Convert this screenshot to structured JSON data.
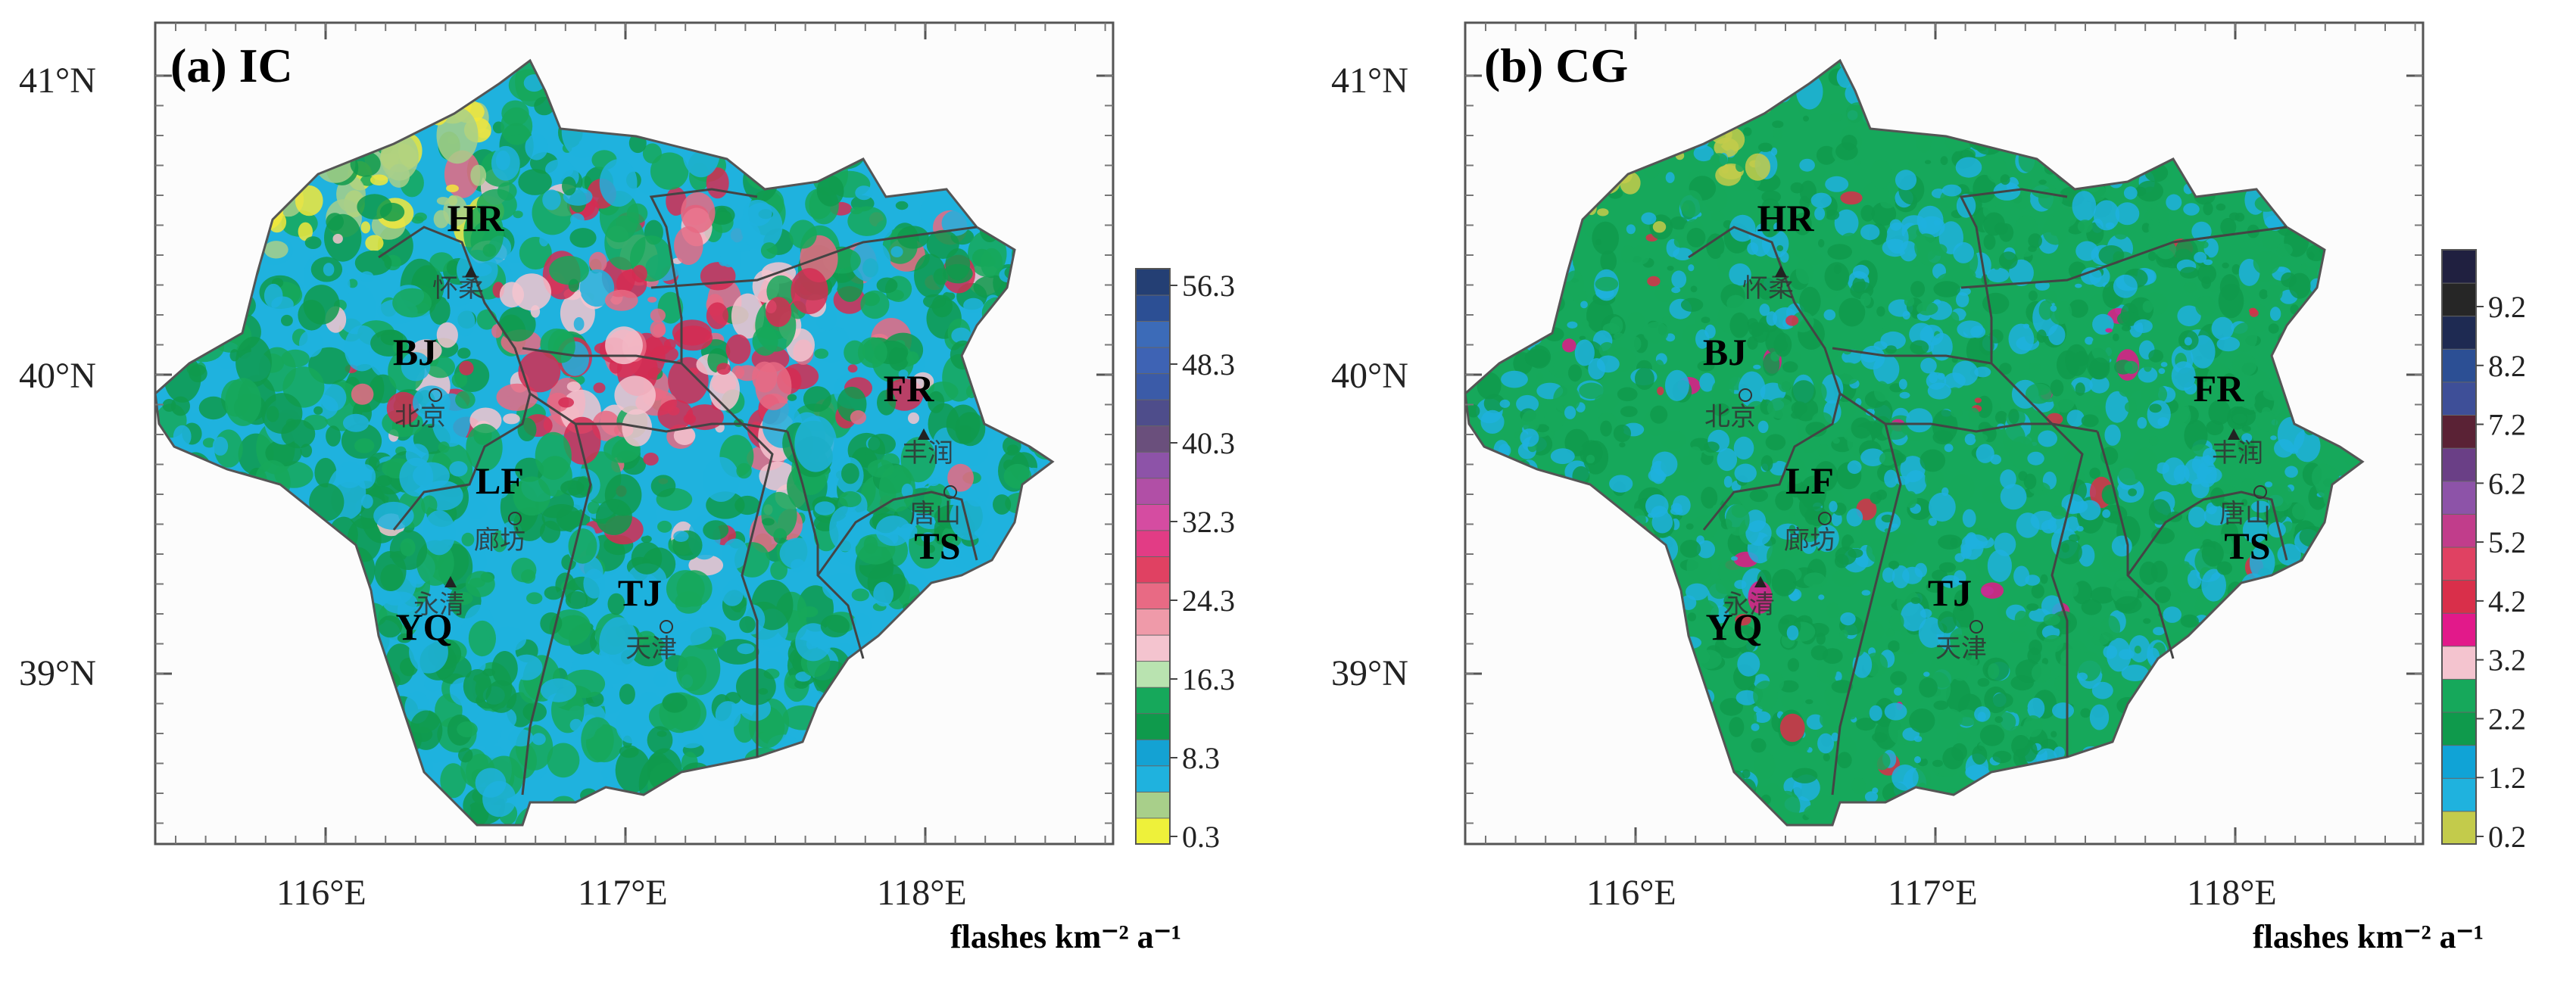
{
  "panels": [
    {
      "id": "ic",
      "title": "(a) IC",
      "units": "flashes km⁻² a⁻¹",
      "lat_labels": [
        "41°N",
        "40°N",
        "39°N"
      ],
      "lon_labels": [
        "116°E",
        "117°E",
        "118°E"
      ],
      "colorbar_ticks": [
        "56.3",
        "48.3",
        "40.3",
        "32.3",
        "24.3",
        "16.3",
        "8.3",
        "0.3"
      ],
      "colorbar_colors": [
        "#eef13a",
        "#a8cf8a",
        "#1fb2de",
        "#14a2d3",
        "#0f9a4c",
        "#16a85b",
        "#b9e3b0",
        "#f4c4cf",
        "#ef9aa9",
        "#e86a84",
        "#e04162",
        "#e23c85",
        "#d54ca1",
        "#b14fa6",
        "#8d53a8",
        "#6a4f7c",
        "#4e4d8b",
        "#3b5ba8",
        "#3e63b4",
        "#3c6bb8",
        "#2c4f94",
        "#243f74"
      ],
      "fill_palette": [
        "#1fb2de",
        "#16a85b",
        "#0f9a4c",
        "#f2e73b",
        "#a8cf8a",
        "#f4c4cf",
        "#e86a84",
        "#d52b52"
      ],
      "sites": [
        {
          "code": "HR",
          "cn": "怀柔"
        },
        {
          "code": "BJ",
          "cn": "北京"
        },
        {
          "code": "LF",
          "cn": "廊坊"
        },
        {
          "code": "YQ",
          "cn": "永清"
        },
        {
          "code": "TJ",
          "cn": "天津"
        },
        {
          "code": "FR",
          "cn": "丰润"
        },
        {
          "code": "TS",
          "cn": "唐山"
        }
      ]
    },
    {
      "id": "cg",
      "title": "(b) CG",
      "units": "flashes km⁻² a⁻¹",
      "lat_labels": [
        "41°N",
        "40°N",
        "39°N"
      ],
      "lon_labels": [
        "116°E",
        "117°E",
        "118°E"
      ],
      "colorbar_ticks": [
        "9.2",
        "8.2",
        "7.2",
        "6.2",
        "5.2",
        "4.2",
        "3.2",
        "2.2",
        "1.2",
        "0.2"
      ],
      "colorbar_colors": [
        "#c3cb4b",
        "#1fb2de",
        "#10a3d6",
        "#0f9a4c",
        "#16a85b",
        "#f4c4cf",
        "#e2198a",
        "#d92f4a",
        "#e04162",
        "#c13d8b",
        "#8d53a8",
        "#6a3f86",
        "#5a2235",
        "#3e4f98",
        "#2c4f94",
        "#1e2a52",
        "#262626",
        "#202040"
      ],
      "fill_palette": [
        "#16a85b",
        "#0f9a4c",
        "#1fb2de",
        "#c3cb4b",
        "#d92f4a",
        "#e2198a"
      ],
      "sites": [
        {
          "code": "HR",
          "cn": "怀柔"
        },
        {
          "code": "BJ",
          "cn": "北京"
        },
        {
          "code": "LF",
          "cn": "廊坊"
        },
        {
          "code": "YQ",
          "cn": "永清"
        },
        {
          "code": "TJ",
          "cn": "天津"
        },
        {
          "code": "FR",
          "cn": "丰润"
        },
        {
          "code": "TS",
          "cn": "唐山"
        }
      ]
    }
  ]
}
